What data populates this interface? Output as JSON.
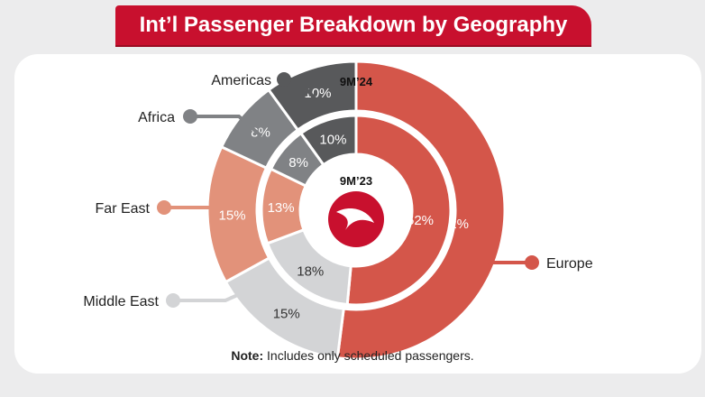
{
  "title": "Int’l Passenger Breakdown by Geography",
  "note": {
    "label": "Note:",
    "text": " Includes only scheduled passengers."
  },
  "chart_data": {
    "type": "donut",
    "rings": [
      {
        "name": "9M’24",
        "values": [
          52,
          15,
          15,
          8,
          10
        ]
      },
      {
        "name": "9M’23",
        "values": [
          52,
          18,
          13,
          8,
          10
        ]
      }
    ],
    "categories": [
      "Europe",
      "Middle East",
      "Far East",
      "Africa",
      "Americas"
    ],
    "value_labels": {
      "outer": [
        "52%",
        "15%",
        "15%",
        "8%",
        "10%"
      ],
      "inner": [
        "52%",
        "18%",
        "13%",
        "8%",
        "10%"
      ]
    },
    "colors": [
      "#d4564a",
      "#d3d4d6",
      "#e2927a",
      "#808285",
      "#58595b"
    ],
    "logo": "turkish-airlines-logo"
  }
}
